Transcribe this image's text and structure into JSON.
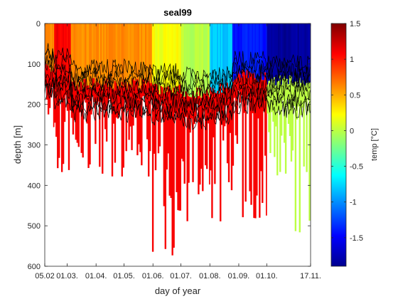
{
  "chart_data": {
    "type": "heatmap",
    "title": "seal99",
    "xlabel": "day of year",
    "ylabel": "depth [m]",
    "x_tick_labels": [
      "05.02",
      "01.03.",
      "01.04.",
      "01.05.",
      "01.06.",
      "01.07.",
      "01.08.",
      "01.09.",
      "01.10.",
      "17.11."
    ],
    "x_tick_days": [
      36,
      60,
      91,
      121,
      152,
      182,
      213,
      244,
      274,
      321
    ],
    "xlim": [
      36,
      321
    ],
    "ylim": [
      0,
      600
    ],
    "y_reversed": true,
    "y_ticks": [
      0,
      100,
      200,
      300,
      400,
      500,
      600
    ],
    "colorbar": {
      "label": "temp [°C]",
      "colormap": "jet",
      "clim": [
        -1.9,
        1.5
      ],
      "ticks": [
        -1.5,
        -1,
        -0.5,
        0,
        0.5,
        1,
        1.5
      ],
      "tick_labels": [
        "-1.5",
        "-1",
        "-0.5",
        "0",
        "0.5",
        "1",
        "1.5"
      ]
    },
    "segments": [
      {
        "start": "05.02",
        "end": "15.02",
        "surface_temp": 0.6,
        "mixed_depth": 110,
        "deep_temp": 1.1,
        "max_depth": 270
      },
      {
        "start": "15.02",
        "end": "05.03",
        "surface_temp": 1.1,
        "mixed_depth": 120,
        "deep_temp": 1.1,
        "max_depth": 390
      },
      {
        "start": "05.03",
        "end": "31.05",
        "surface_temp": 0.6,
        "mixed_depth": 150,
        "deep_temp": 1.1,
        "max_depth": 380
      },
      {
        "start": "31.05",
        "end": "01.07",
        "surface_temp": 0.2,
        "mixed_depth": 160,
        "deep_temp": 1.1,
        "max_depth": 580
      },
      {
        "start": "01.07",
        "end": "01.08",
        "surface_temp": 0.0,
        "mixed_depth": 170,
        "deep_temp": 1.1,
        "max_depth": 540
      },
      {
        "start": "01.08",
        "end": "25.08",
        "surface_temp": -0.8,
        "mixed_depth": 160,
        "deep_temp": 1.1,
        "max_depth": 520
      },
      {
        "start": "25.08",
        "end": "01.10",
        "surface_temp": -1.4,
        "mixed_depth": 130,
        "deep_temp": 1.1,
        "max_depth": 560
      },
      {
        "start": "01.10",
        "end": "17.11",
        "surface_temp": -1.8,
        "mixed_depth": 140,
        "deep_temp": 0.0,
        "max_depth": 580
      }
    ],
    "profile_lines": "black temperature contour traces between 100 m and 250 m depth"
  },
  "colors": {
    "plot_background": "#ffffff",
    "axis": "#262626",
    "lines": "#000000"
  }
}
